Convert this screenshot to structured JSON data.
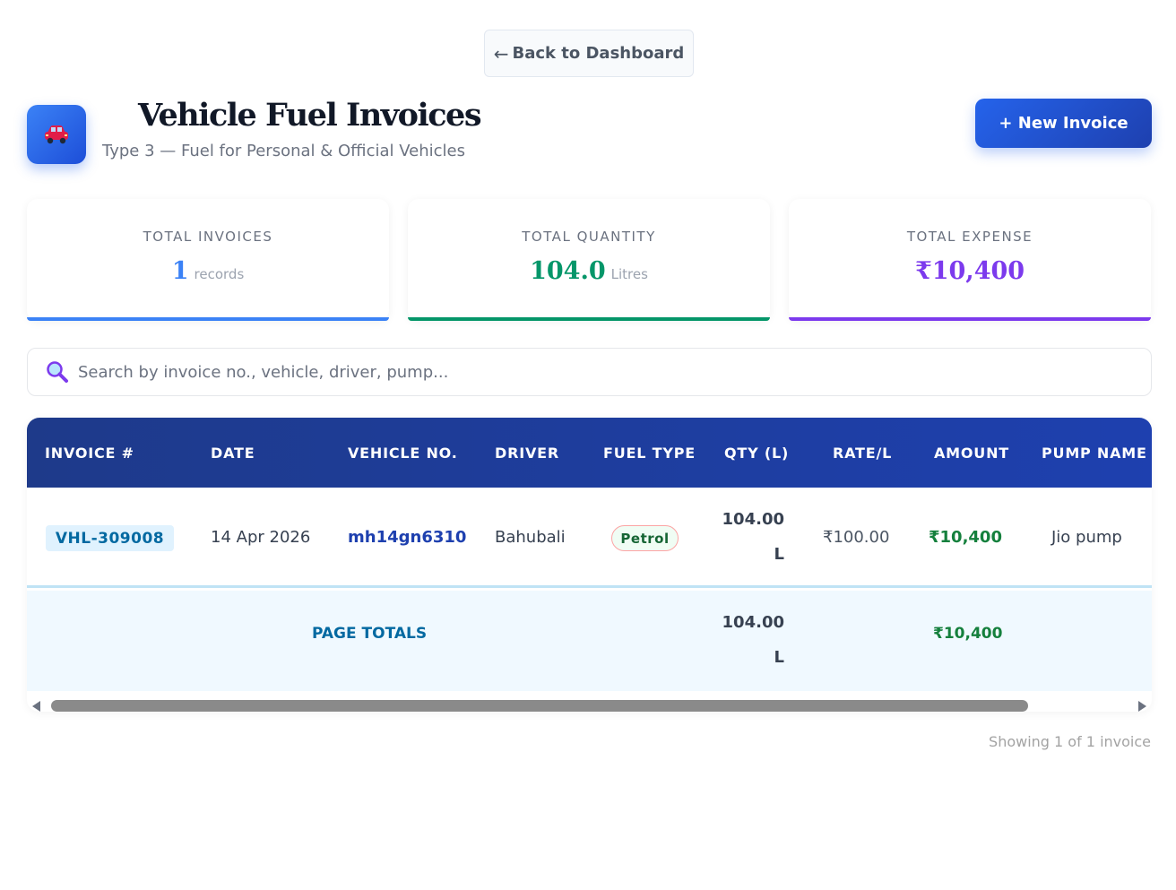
{
  "nav": {
    "back_arrow": "←",
    "back_label": "Back to Dashboard"
  },
  "header": {
    "icon": "car-icon",
    "title": "Vehicle Fuel Invoices",
    "subtitle": "Type 3 — Fuel for Personal & Official Vehicles",
    "new_button": "+ New Invoice"
  },
  "stats": [
    {
      "label": "TOTAL INVOICES",
      "value": "1",
      "unit": "records",
      "color": "#3b82f6"
    },
    {
      "label": "TOTAL QUANTITY",
      "value": "104.0",
      "unit": "Litres",
      "color": "#059669"
    },
    {
      "label": "TOTAL EXPENSE",
      "value": "₹10,400",
      "unit": "",
      "color": "#7c3aed"
    }
  ],
  "search": {
    "icon": "magnifier-icon",
    "placeholder": "Search by invoice no., vehicle, driver, pump..."
  },
  "table": {
    "columns": [
      "INVOICE #",
      "DATE",
      "VEHICLE NO.",
      "DRIVER",
      "FUEL TYPE",
      "QTY (L)",
      "RATE/L",
      "AMOUNT",
      "PUMP NAME"
    ],
    "rows": [
      {
        "invoice": "VHL-309008",
        "date": "14 Apr 2026",
        "vehicle": "mh14gn6310",
        "driver": "Bahubali",
        "fuel_type": "Petrol",
        "qty": "104.00",
        "qty_unit": "L",
        "rate": "₹100.00",
        "amount": "₹10,400",
        "pump": "Jio pump"
      }
    ],
    "totals": {
      "label": "PAGE TOTALS",
      "qty": "104.00",
      "qty_unit": "L",
      "amount": "₹10,400"
    }
  },
  "footer": {
    "showing": "Showing 1 of 1 invoice"
  }
}
